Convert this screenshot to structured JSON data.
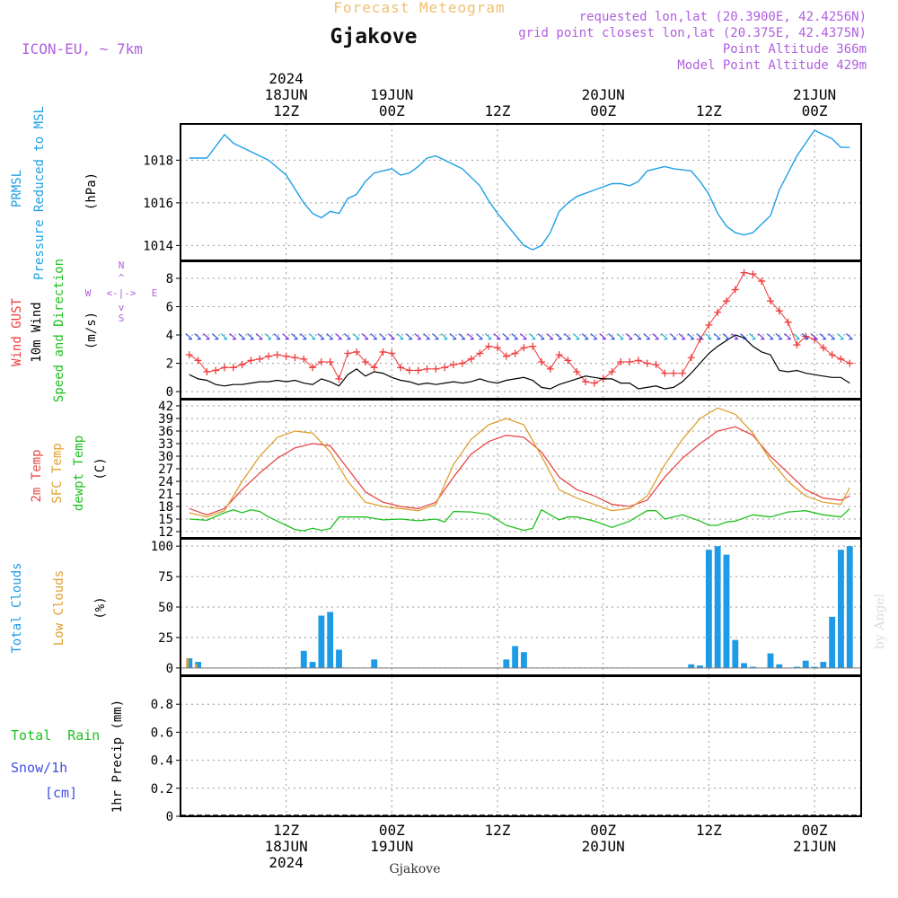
{
  "header": {
    "product": "Forecast Meteogram",
    "station": "Gjakove",
    "model": "ICON-EU, ~ 7km",
    "requested": "requested lon,lat (20.3900E, 42.4256N)",
    "grid_point": "grid point closest lon,lat (20.375E, 42.4375N)",
    "point_altitude": "Point Altitude 366m",
    "model_altitude": "Model Point Altitude 429m",
    "footer_station": "Gjakove",
    "credit": "by Angel"
  },
  "colors": {
    "pressure": "#1ea0e6",
    "gust": "#f03c3c",
    "wind": "#000000",
    "temp2m": "#e84848",
    "sfc": "#e0a030",
    "dewpt": "#20c020",
    "total_clouds": "#1e9be6",
    "low_clouds": "#e0a030",
    "rain": "#20c020",
    "snow": "#4050e0",
    "header_purple": "#b060e0",
    "header_orange": "#f0c070"
  },
  "axis": {
    "top_labels": [
      {
        "hour": 12,
        "lines": [
          "2024",
          "18JUN",
          "12Z"
        ]
      },
      {
        "hour": 24,
        "lines": [
          "19JUN",
          "00Z"
        ]
      },
      {
        "hour": 36,
        "lines": [
          "12Z"
        ]
      },
      {
        "hour": 48,
        "lines": [
          "20JUN",
          "00Z"
        ]
      },
      {
        "hour": 60,
        "lines": [
          "12Z"
        ]
      },
      {
        "hour": 72,
        "lines": [
          "21JUN",
          "00Z"
        ]
      }
    ],
    "bottom_labels": [
      {
        "hour": 12,
        "lines": [
          "12Z",
          "18JUN",
          "2024"
        ]
      },
      {
        "hour": 24,
        "lines": [
          "00Z",
          "19JUN"
        ]
      },
      {
        "hour": 36,
        "lines": [
          "12Z"
        ]
      },
      {
        "hour": 48,
        "lines": [
          "00Z",
          "20JUN"
        ]
      },
      {
        "hour": 60,
        "lines": [
          "12Z"
        ]
      },
      {
        "hour": 72,
        "lines": [
          "00Z",
          "21JUN"
        ]
      }
    ]
  },
  "panels": {
    "pressure": {
      "labels": [
        "PRMSL",
        "Pressure Reduced to MSL"
      ],
      "unit": "(hPa)"
    },
    "wind": {
      "labels": [
        "Wind GUST",
        "10m Wind",
        "Speed and Direction"
      ],
      "unit": "(m/s)",
      "compass": {
        "n": "N",
        "w": "W",
        "e": "E",
        "s": "S"
      }
    },
    "temp": {
      "labels": [
        "2m Temp",
        "SFC Temp",
        "dewpt Temp"
      ],
      "unit": "(C)"
    },
    "clouds": {
      "labels": [
        "Total Clouds",
        "Low Clouds"
      ],
      "unit": "(%)"
    },
    "precip": {
      "labels": [
        "Total  Rain",
        "Snow/1h",
        "[cm]"
      ],
      "unit": "1hr Precip (mm)"
    }
  },
  "chart_data": [
    {
      "type": "line",
      "name": "pressure",
      "x_unit": "hours from 18JUN 00Z",
      "ylim": [
        1013.3,
        1019.7
      ],
      "yticks": [
        1014,
        1016,
        1018
      ],
      "series": [
        {
          "name": "PRMSL",
          "x": [
            1,
            3,
            5,
            6,
            8,
            10,
            12,
            14,
            15,
            16,
            17,
            18,
            19,
            20,
            21,
            22,
            24,
            25,
            26,
            27,
            28,
            29,
            30,
            32,
            34,
            35,
            36,
            37,
            38,
            39,
            40,
            41,
            42,
            43,
            44,
            45,
            47,
            49,
            50,
            51,
            52,
            53,
            55,
            56,
            58,
            59,
            60,
            61,
            62,
            63,
            64,
            65,
            67,
            68,
            70,
            71,
            72,
            74,
            75,
            76
          ],
          "values": [
            1018.1,
            1018.1,
            1019.2,
            1018.8,
            1018.4,
            1018.0,
            1017.3,
            1016.0,
            1015.5,
            1015.3,
            1015.6,
            1015.5,
            1016.2,
            1016.4,
            1017.0,
            1017.4,
            1017.6,
            1017.3,
            1017.4,
            1017.7,
            1018.1,
            1018.2,
            1018.0,
            1017.6,
            1016.8,
            1016.1,
            1015.5,
            1015.0,
            1014.5,
            1014.0,
            1013.8,
            1014.0,
            1014.6,
            1015.6,
            1016.0,
            1016.3,
            1016.6,
            1016.9,
            1016.9,
            1016.8,
            1017.0,
            1017.5,
            1017.7,
            1017.6,
            1017.5,
            1017.0,
            1016.4,
            1015.5,
            1014.9,
            1014.6,
            1014.5,
            1014.6,
            1015.4,
            1016.6,
            1018.2,
            1018.8,
            1019.4,
            1019.0,
            1018.6,
            1018.6
          ]
        }
      ]
    },
    {
      "type": "line",
      "name": "wind",
      "x_unit": "hours from 18JUN 00Z",
      "ylim": [
        -0.5,
        9.2
      ],
      "yticks": [
        0,
        2,
        4,
        6,
        8
      ],
      "series": [
        {
          "name": "Wind GUST",
          "x": [
            1,
            2,
            3,
            4,
            5,
            6,
            7,
            8,
            9,
            10,
            11,
            12,
            13,
            14,
            15,
            16,
            17,
            18,
            19,
            20,
            21,
            22,
            23,
            24,
            25,
            26,
            27,
            28,
            29,
            30,
            31,
            32,
            33,
            34,
            35,
            36,
            37,
            38,
            39,
            40,
            41,
            42,
            43,
            44,
            45,
            46,
            47,
            48,
            49,
            50,
            51,
            52,
            53,
            54,
            55,
            56,
            57,
            58,
            59,
            60,
            61,
            62,
            63,
            64,
            65,
            66,
            67,
            68,
            69,
            70,
            71,
            72,
            73,
            74,
            75,
            76
          ],
          "values": [
            2.6,
            2.2,
            1.4,
            1.5,
            1.7,
            1.7,
            1.9,
            2.2,
            2.3,
            2.5,
            2.6,
            2.5,
            2.4,
            2.3,
            1.7,
            2.1,
            2.1,
            0.9,
            2.7,
            2.8,
            2.1,
            1.7,
            2.8,
            2.7,
            1.7,
            1.5,
            1.5,
            1.6,
            1.6,
            1.7,
            1.9,
            2.0,
            2.3,
            2.7,
            3.2,
            3.1,
            2.5,
            2.7,
            3.1,
            3.2,
            2.1,
            1.6,
            2.6,
            2.2,
            1.4,
            0.7,
            0.6,
            0.9,
            1.4,
            2.1,
            2.1,
            2.2,
            2.0,
            1.9,
            1.3,
            1.3,
            1.3,
            2.4,
            3.7,
            4.7,
            5.6,
            6.4,
            7.2,
            8.4,
            8.3,
            7.8,
            6.4,
            5.7,
            4.9,
            3.3,
            3.9,
            3.7,
            3.1,
            2.6,
            2.3,
            2.0
          ]
        },
        {
          "name": "10m Wind",
          "x": [
            1,
            2,
            3,
            4,
            5,
            6,
            7,
            8,
            9,
            10,
            11,
            12,
            13,
            14,
            15,
            16,
            17,
            18,
            19,
            20,
            21,
            22,
            23,
            24,
            25,
            26,
            27,
            28,
            29,
            30,
            31,
            32,
            33,
            34,
            35,
            36,
            37,
            38,
            39,
            40,
            41,
            42,
            43,
            44,
            45,
            46,
            47,
            48,
            49,
            50,
            51,
            52,
            53,
            54,
            55,
            56,
            57,
            58,
            59,
            60,
            61,
            62,
            63,
            64,
            65,
            66,
            67,
            68,
            69,
            70,
            71,
            72,
            73,
            74,
            75,
            76
          ],
          "values": [
            1.2,
            0.9,
            0.8,
            0.5,
            0.4,
            0.5,
            0.5,
            0.6,
            0.7,
            0.7,
            0.8,
            0.7,
            0.8,
            0.6,
            0.5,
            0.9,
            0.7,
            0.4,
            1.2,
            1.6,
            1.1,
            1.4,
            1.3,
            1.0,
            0.8,
            0.7,
            0.5,
            0.6,
            0.5,
            0.6,
            0.7,
            0.6,
            0.7,
            0.9,
            0.7,
            0.6,
            0.8,
            0.9,
            1.0,
            0.8,
            0.3,
            0.2,
            0.5,
            0.7,
            0.9,
            1.1,
            1.0,
            0.9,
            0.9,
            0.6,
            0.6,
            0.2,
            0.3,
            0.4,
            0.2,
            0.3,
            0.7,
            1.3,
            2.0,
            2.7,
            3.2,
            3.6,
            4.0,
            3.8,
            3.2,
            2.8,
            2.6,
            1.5,
            1.4,
            1.5,
            1.3,
            1.2,
            1.1,
            1.0,
            1.0,
            0.6
          ]
        }
      ]
    },
    {
      "type": "line",
      "name": "temperature",
      "x_unit": "hours from 18JUN 00Z",
      "ylim": [
        10.5,
        43.5
      ],
      "yticks": [
        12,
        15,
        18,
        21,
        24,
        27,
        30,
        33,
        36,
        39,
        42
      ],
      "series": [
        {
          "name": "2m Temp",
          "x": [
            1,
            3,
            5,
            7,
            9,
            11,
            13,
            15,
            17,
            19,
            21,
            23,
            25,
            27,
            29,
            31,
            33,
            35,
            37,
            39,
            41,
            43,
            45,
            47,
            49,
            51,
            53,
            55,
            57,
            59,
            61,
            63,
            65,
            67,
            69,
            71,
            73,
            75,
            76
          ],
          "values": [
            17.5,
            16,
            17.5,
            22,
            26,
            29.5,
            32,
            33,
            32.5,
            27,
            21.5,
            19,
            18,
            17.5,
            19,
            25,
            30.5,
            33.5,
            35,
            34.5,
            31,
            25,
            22,
            20.5,
            18.5,
            18,
            19.5,
            25,
            29.5,
            33,
            36,
            37,
            35,
            30,
            26,
            22,
            20,
            19.5,
            20.5
          ]
        },
        {
          "name": "SFC Temp",
          "x": [
            1,
            3,
            5,
            7,
            9,
            11,
            13,
            15,
            17,
            19,
            21,
            23,
            25,
            27,
            29,
            31,
            33,
            35,
            37,
            39,
            41,
            43,
            45,
            47,
            49,
            51,
            53,
            55,
            57,
            59,
            61,
            63,
            65,
            67,
            69,
            71,
            73,
            75,
            76
          ],
          "values": [
            16.5,
            15.5,
            17,
            24,
            30,
            34.5,
            36,
            35.5,
            31,
            24,
            19,
            18,
            17.5,
            17,
            18.5,
            28,
            34,
            37.5,
            39,
            37.5,
            30,
            22,
            20,
            18.5,
            17,
            17.5,
            20.5,
            28,
            34,
            39,
            41.5,
            40,
            35.5,
            29,
            24,
            20.5,
            19,
            18.5,
            22.5
          ]
        },
        {
          "name": "dewpt Temp",
          "x": [
            1,
            3,
            5,
            6,
            7,
            8,
            9,
            10,
            11,
            12,
            13,
            14,
            15,
            16,
            17,
            18,
            19,
            21,
            23,
            25,
            27,
            29,
            30,
            31,
            33,
            35,
            37,
            39,
            40,
            41,
            42,
            43,
            44,
            45,
            47,
            49,
            51,
            53,
            54,
            55,
            57,
            59,
            60,
            61,
            62,
            63,
            65,
            67,
            69,
            71,
            73,
            75,
            76
          ],
          "values": [
            15,
            14.7,
            16.5,
            17.2,
            16.5,
            17.2,
            16.8,
            15.5,
            14.5,
            13.5,
            12.5,
            12.2,
            12.8,
            12.3,
            12.7,
            15.5,
            15.5,
            15.5,
            14.8,
            15,
            14.6,
            15,
            14.3,
            16.8,
            16.7,
            16.1,
            13.5,
            12.3,
            12.8,
            17.2,
            16,
            14.8,
            15.5,
            15.5,
            14.5,
            13,
            14.5,
            17,
            17,
            15,
            16,
            14.5,
            13.5,
            13.5,
            14.3,
            14.5,
            16,
            15.5,
            16.7,
            17,
            16,
            15.5,
            17.5
          ]
        }
      ]
    },
    {
      "type": "bar",
      "name": "clouds",
      "x_unit": "hours from 18JUN 00Z",
      "ylim": [
        -6,
        106
      ],
      "yticks": [
        0,
        25,
        50,
        75,
        100
      ],
      "series": [
        {
          "name": "Total Clouds",
          "x": [
            1,
            2,
            14,
            15,
            16,
            17,
            18,
            22,
            37,
            38,
            39,
            58,
            59,
            60,
            61,
            62,
            63,
            64,
            65,
            67,
            68,
            70,
            71,
            72,
            73,
            74,
            75,
            76
          ],
          "values": [
            8,
            5,
            14,
            5,
            43,
            46,
            15,
            7,
            7,
            18,
            13,
            3,
            2,
            97,
            100,
            93,
            23,
            4,
            1,
            12,
            3,
            1,
            6,
            1,
            5,
            42,
            97,
            100
          ]
        },
        {
          "name": "Low Clouds",
          "x": [
            1,
            2
          ],
          "values": [
            8,
            3
          ]
        }
      ]
    },
    {
      "type": "bar",
      "name": "precipitation",
      "x_unit": "hours from 18JUN 00Z",
      "ylim": [
        0,
        1
      ],
      "yticks": [
        0,
        0.2,
        0.4,
        0.6,
        0.8
      ],
      "series": [
        {
          "name": "Total Rain",
          "x": [],
          "values": []
        },
        {
          "name": "Snow/1h",
          "x": [],
          "values": []
        }
      ]
    }
  ]
}
